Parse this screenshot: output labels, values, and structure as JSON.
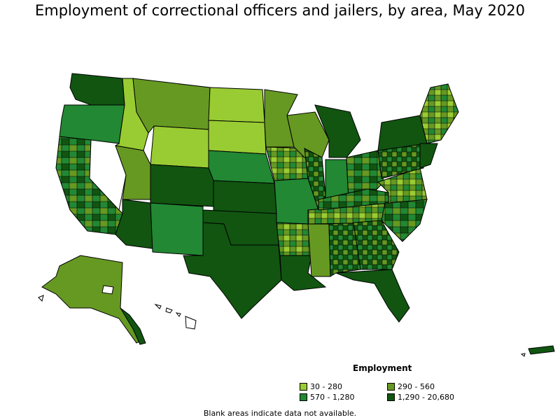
{
  "title": "Employment of correctional officers and jailers, by area, May 2020",
  "legend": {
    "title": "Employment",
    "items": [
      {
        "label": "30 - 280",
        "color": "#99cc33"
      },
      {
        "label": "290 - 560",
        "color": "#669922"
      },
      {
        "label": "570 - 1,280",
        "color": "#228833"
      },
      {
        "label": "1,290 - 20,680",
        "color": "#115511"
      }
    ]
  },
  "footnote": "Blank areas indicate data not available.",
  "colors": {
    "no_data": "#ffffff",
    "border": "#000000"
  }
}
